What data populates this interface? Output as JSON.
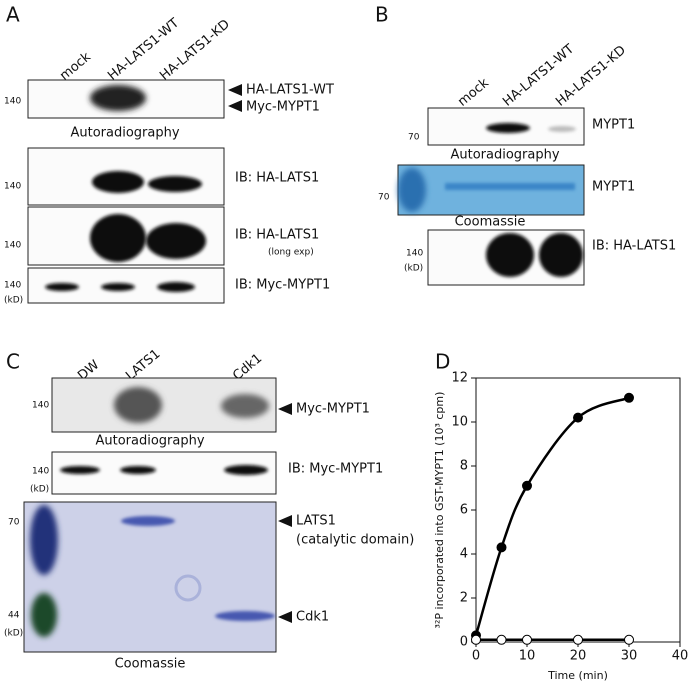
{
  "panel_a": {
    "label": "A",
    "lanes": [
      "mock",
      "HA-LATS1-WT",
      "HA-LATS1-KD"
    ],
    "blots": [
      {
        "marker": 140,
        "annotations": [
          "HA-LATS1-WT",
          "Myc-MYPT1"
        ],
        "caption": "Autoradiography"
      },
      {
        "marker": 140,
        "label": "IB: HA-LATS1"
      },
      {
        "marker": 140,
        "label": "IB: HA-LATS1",
        "note": "(long exp)"
      },
      {
        "marker": 140,
        "unit": "(kD)",
        "label": "IB: Myc-MYPT1"
      }
    ]
  },
  "panel_b": {
    "label": "B",
    "lanes": [
      "mock",
      "HA-LATS1-WT",
      "HA-LATS1-KD"
    ],
    "blots": [
      {
        "marker": 70,
        "label": "MYPT1",
        "caption": "Autoradiography"
      },
      {
        "marker": 70,
        "label": "MYPT1",
        "caption": "Coomassie"
      },
      {
        "marker": 140,
        "unit": "(kD)",
        "label": "IB: HA-LATS1"
      }
    ]
  },
  "panel_c": {
    "label": "C",
    "lanes": [
      "DW",
      "LATS1",
      "Cdk1"
    ],
    "blots": [
      {
        "marker": 140,
        "annotation": "Myc-MYPT1",
        "caption": "Autoradiography"
      },
      {
        "marker": 140,
        "unit": "(kD)",
        "label": "IB: Myc-MYPT1"
      },
      {
        "markers": [
          70,
          44
        ],
        "unit": "(kD)",
        "annotations": [
          "LATS1",
          "(catalytic domain)",
          "Cdk1"
        ],
        "caption": "Coomassie"
      }
    ]
  },
  "panel_d": {
    "label": "D"
  },
  "chart_data": {
    "type": "line",
    "xlabel": "Time (min)",
    "ylabel": "³²P incorporated into GST-MYPT1 (10³ cpm)",
    "x": [
      0,
      5,
      10,
      20,
      30
    ],
    "series": [
      {
        "color": "#000000",
        "values": [
          0.3,
          4.3,
          7.1,
          10.2,
          11.1
        ]
      },
      {
        "color": "#ffffff",
        "values": [
          0.1,
          0.1,
          0.1,
          0.1,
          0.1
        ]
      }
    ],
    "xlim": [
      0,
      40
    ],
    "xticks": [
      0,
      10,
      20,
      30,
      40
    ],
    "ylim": [
      0,
      12
    ],
    "yticks": [
      0,
      2,
      4,
      6,
      8,
      10,
      12
    ]
  }
}
